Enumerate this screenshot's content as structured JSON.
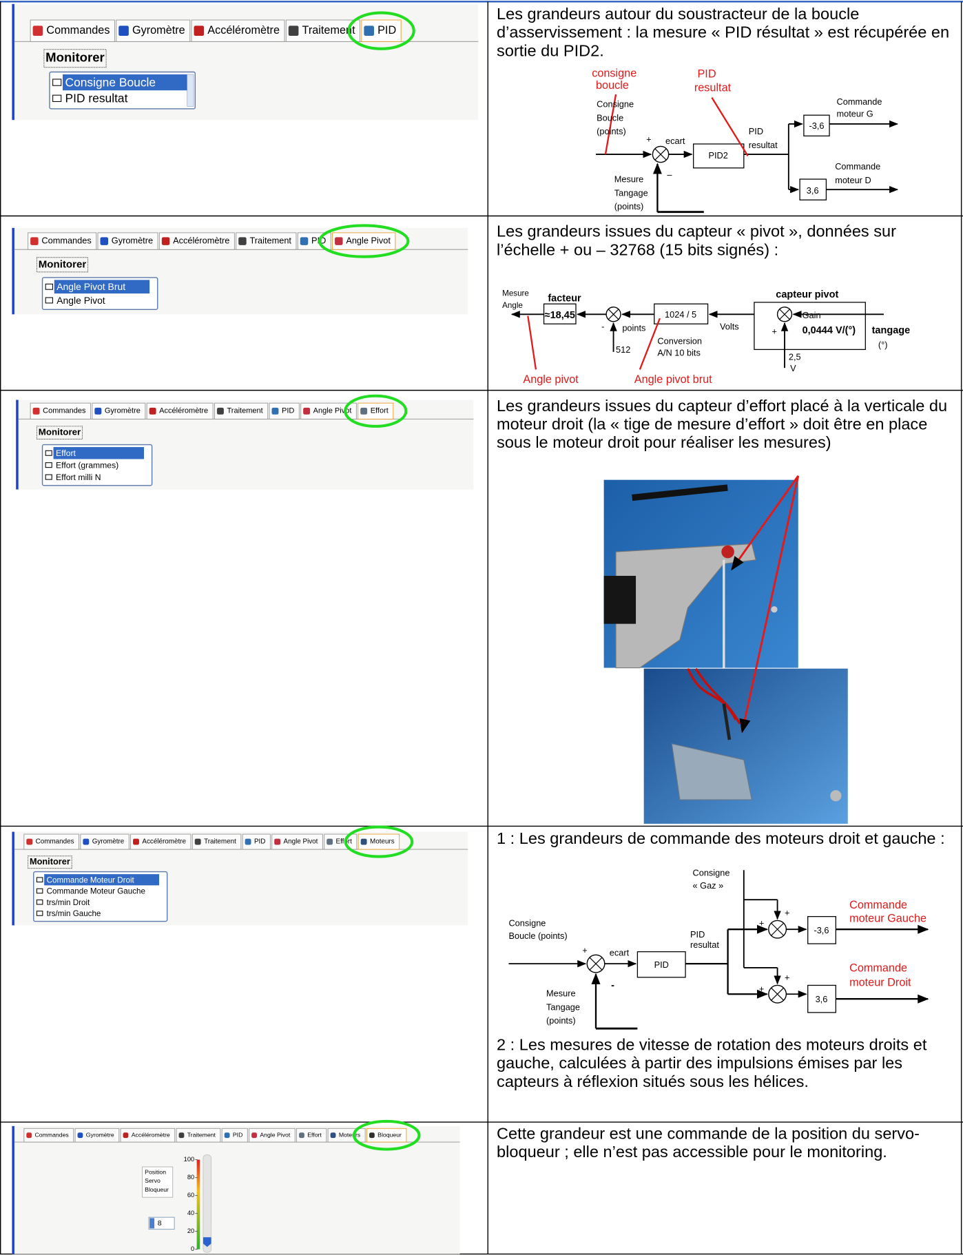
{
  "rows": [
    {
      "screen": {
        "tabs": [
          "Commandes",
          "Gyromètre",
          "Accéléromètre",
          "Traitement",
          "PID"
        ],
        "group": "Monitorer",
        "items": [
          "Consigne Boucle",
          "PID resultat"
        ]
      },
      "text": "Les grandeurs autour du soustracteur de la boucle d’asservissement : la mesure « PID résultat » est récupérée en sortie du PID2.",
      "diagram": [
        "consigne",
        "boucle",
        "PID",
        "resultat",
        "Consigne",
        "Boucle",
        "(points)",
        "+",
        "ecart",
        "PID2",
        "PID",
        "resultat",
        "-3,6",
        "Commande",
        "moteur G",
        "Commande",
        "moteur D",
        "3,6",
        "Mesure",
        "Tangage",
        "(points)",
        "–"
      ]
    },
    {
      "screen": {
        "tabs": [
          "Commandes",
          "Gyromètre",
          "Accéléromètre",
          "Traitement",
          "PID",
          "Angle Pivot"
        ],
        "group": "Monitorer",
        "items": [
          "Angle Pivot Brut",
          "Angle Pivot"
        ]
      },
      "text": "Les grandeurs issues du capteur « pivot », données sur l’échelle + ou – 32768 (15 bits signés) :",
      "diagram": [
        "Mesure",
        "Angle",
        "facteur",
        "≈18,45",
        "-",
        "points",
        "512",
        "1024 / 5",
        "Volts",
        "Conversion",
        "A/N 10 bits",
        "capteur pivot",
        "Gain",
        "0,0444 V/(°)",
        "+",
        "tangage",
        "(°)",
        "2,5",
        "V",
        "Angle pivot",
        "Angle pivot brut"
      ]
    },
    {
      "screen": {
        "tabs": [
          "Commandes",
          "Gyromètre",
          "Accéléromètre",
          "Traitement",
          "PID",
          "Angle Pivot",
          "Effort"
        ],
        "group": "Monitorer",
        "items": [
          "Effort",
          "Effort (grammes)",
          "Effort milli N"
        ]
      },
      "text": "Les grandeurs issues du capteur d’effort placé à la verticale du moteur droit (la « tige de mesure d’effort » doit être en place sous le moteur droit pour réaliser les mesures)"
    },
    {
      "screen": {
        "tabs": [
          "Commandes",
          "Gyromètre",
          "Accéléromètre",
          "Traitement",
          "PID",
          "Angle Pivot",
          "Effort",
          "Moteurs"
        ],
        "group": "Monitorer",
        "items": [
          "Commande Moteur Droit",
          "Commande Moteur Gauche",
          "trs/min Droit",
          "trs/min Gauche"
        ]
      },
      "text": "1 : Les grandeurs de commande des moteurs droit et gauche :",
      "diagram": [
        "Consigne",
        "« Gaz »",
        "Consigne",
        "Boucle (points)",
        "+",
        "ecart",
        "PID",
        "PID",
        "resultat",
        "+",
        "+",
        "-3,6",
        "+",
        "+",
        "3,6",
        "Commande",
        "moteur Gauche",
        "Commande",
        "moteur Droit",
        "Mesure",
        "Tangage",
        "(points)",
        "-"
      ],
      "text2": "2 : Les mesures de vitesse de rotation des moteurs droits et gauche, calculées à partir des impulsions émises par les capteurs à réflexion situés sous les hélices."
    },
    {
      "screen": {
        "tabs": [
          "Commandes",
          "Gyromètre",
          "Accéléromètre",
          "Traitement",
          "PID",
          "Angle Pivot",
          "Effort",
          "Moteurs",
          "Bloqueur"
        ],
        "slider": {
          "label": [
            "Position",
            "Servo",
            "Bloqueur"
          ],
          "value": 8,
          "ticks": [
            100,
            80,
            60,
            40,
            20,
            0
          ]
        }
      },
      "text": "Cette grandeur est une commande de la position du servo-bloqueur ; elle n’est pas accessible pour le monitoring."
    }
  ]
}
